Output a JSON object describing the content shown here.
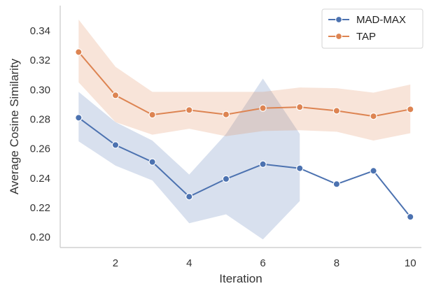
{
  "chart_data": {
    "type": "line",
    "xlabel": "Iteration",
    "ylabel": "Average Cosine Similarity",
    "xlim": [
      0.5,
      10.3
    ],
    "ylim": [
      0.193,
      0.357
    ],
    "xticks": [
      2,
      4,
      6,
      8,
      10
    ],
    "yticks": [
      0.2,
      0.22,
      0.24,
      0.26,
      0.28,
      0.3,
      0.32,
      0.34
    ],
    "ytick_labels": [
      "0.20",
      "0.22",
      "0.24",
      "0.26",
      "0.28",
      "0.30",
      "0.32",
      "0.34"
    ],
    "xtick_labels": [
      "2",
      "4",
      "6",
      "8",
      "10"
    ],
    "grid": false,
    "legend_position": "top-right",
    "series": [
      {
        "name": "MAD-MAX",
        "color": "#4c72b0",
        "x": [
          1,
          2,
          3,
          4,
          5,
          6,
          7,
          8,
          9,
          10
        ],
        "y": [
          0.281,
          0.2625,
          0.251,
          0.2275,
          0.2395,
          0.2495,
          0.2467,
          0.236,
          0.245,
          0.2138
        ],
        "band": {
          "x": [
            1,
            2,
            3,
            4,
            5,
            6,
            7
          ],
          "lower": [
            0.265,
            0.2485,
            0.2385,
            0.2095,
            0.2155,
            0.1985,
            0.2245
          ],
          "upper": [
            0.2985,
            0.278,
            0.2655,
            0.2425,
            0.27,
            0.3075,
            0.27
          ]
        }
      },
      {
        "name": "TAP",
        "color": "#dd8452",
        "x": [
          1,
          2,
          3,
          4,
          5,
          6,
          7,
          8,
          9,
          10
        ],
        "y": [
          0.3255,
          0.2962,
          0.283,
          0.2862,
          0.2832,
          0.2875,
          0.2882,
          0.2857,
          0.282,
          0.2867
        ],
        "band": {
          "x": [
            1,
            2,
            3,
            4,
            5,
            6,
            7,
            8,
            9,
            10
          ],
          "lower": [
            0.305,
            0.278,
            0.2695,
            0.2735,
            0.2685,
            0.272,
            0.2725,
            0.2715,
            0.2655,
            0.2705
          ],
          "upper": [
            0.3475,
            0.3155,
            0.2985,
            0.2985,
            0.2985,
            0.2985,
            0.3015,
            0.301,
            0.298,
            0.3035
          ]
        }
      }
    ]
  }
}
